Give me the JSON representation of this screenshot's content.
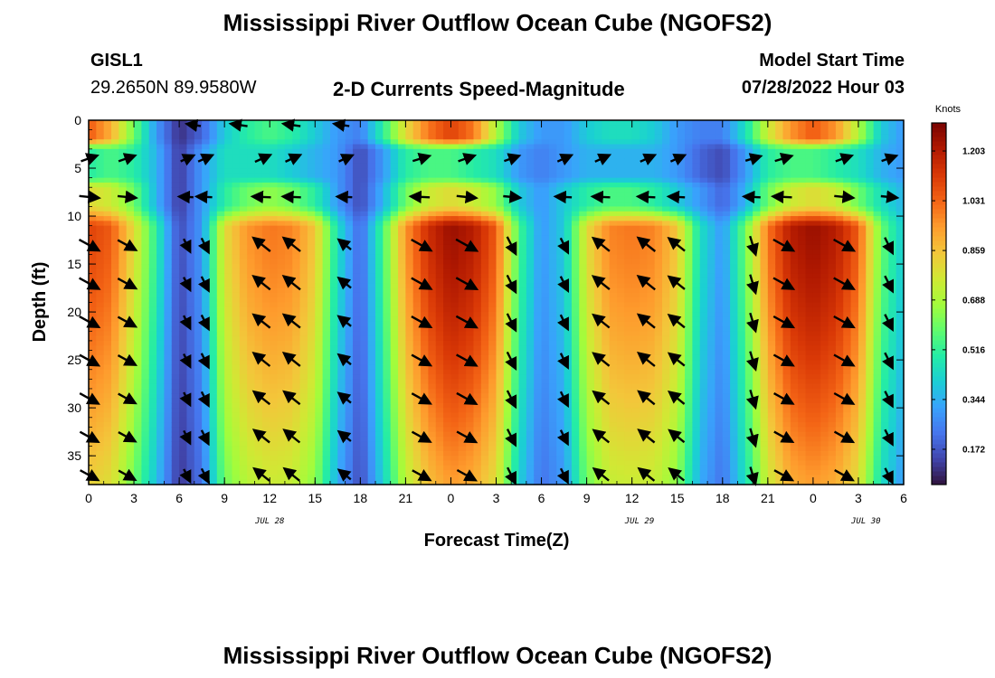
{
  "page": {
    "title": "Mississippi River Outflow Ocean Cube (NGOFS2)",
    "station_id": "GISL1",
    "station_coords": "29.2650N  89.9580W",
    "plot_subtitle": "2-D Currents Speed-Magnitude",
    "model_label": "Model Start Time",
    "model_time": "07/28/2022 Hour 03",
    "footer_title": "Mississippi River Outflow Ocean Cube (NGOFS2)"
  },
  "chart_data": {
    "type": "heatmap",
    "xlabel": "Forecast Time(Z)",
    "ylabel": "Depth (ft)",
    "xlim": [
      0,
      54
    ],
    "ylim": [
      0,
      38
    ],
    "y_inverted": true,
    "x_ticks": [
      0,
      3,
      6,
      9,
      12,
      15,
      18,
      21,
      24,
      27,
      30,
      33,
      36,
      39,
      42,
      45,
      48,
      51,
      54
    ],
    "x_tick_labels": [
      "0",
      "3",
      "6",
      "9",
      "12",
      "15",
      "18",
      "21",
      "0",
      "3",
      "6",
      "9",
      "12",
      "15",
      "18",
      "21",
      "0",
      "3",
      "6"
    ],
    "y_ticks": [
      0,
      5,
      10,
      15,
      20,
      25,
      30,
      35
    ],
    "y_tick_labels": [
      "0",
      "5",
      "10",
      "15",
      "20",
      "25",
      "30",
      "35"
    ],
    "date_labels": [
      {
        "x": 12,
        "text": "JUL 28"
      },
      {
        "x": 36.5,
        "text": "JUL 29"
      },
      {
        "x": 51.5,
        "text": "JUL 30"
      }
    ],
    "colorbar": {
      "label": "Knots",
      "min": 0.05,
      "max": 1.3,
      "ticks": [
        1.203,
        1.031,
        0.859,
        0.688,
        0.516,
        0.344,
        0.172
      ],
      "tick_labels": [
        "1.203",
        "1.031",
        "0.859",
        "0.688",
        "0.516",
        "0.344",
        "0.172"
      ],
      "colormap": [
        "#30123b",
        "#4145ab",
        "#4675ed",
        "#39a2fc",
        "#1bcfd4",
        "#24eca6",
        "#61fc6c",
        "#a4fc3b",
        "#d1e834",
        "#f3c63a",
        "#fe9b2d",
        "#f36315",
        "#d93806",
        "#b11901",
        "#7a0402"
      ]
    },
    "depth_layers": [
      {
        "top": 0,
        "bottom": 3
      },
      {
        "top": 3,
        "bottom": 7
      },
      {
        "top": 7,
        "bottom": 10
      },
      {
        "top": 10,
        "bottom": 38
      }
    ],
    "speed_profile": {
      "note_keys": [
        "hours",
        "surface",
        "mid",
        "interface",
        "deep"
      ],
      "hours": [
        0,
        1.5,
        3,
        4.5,
        6,
        7.5,
        9,
        10.5,
        12,
        13.5,
        15,
        16.5,
        18,
        19.5,
        21,
        22.5,
        24,
        25.5,
        27,
        28.5,
        30,
        31.5,
        33,
        34.5,
        36,
        37.5,
        39,
        40.5,
        42,
        43.5,
        45,
        46.5,
        48,
        49.5,
        51,
        52.5,
        54
      ],
      "surface": [
        1.05,
        0.9,
        0.6,
        0.3,
        0.1,
        0.2,
        0.4,
        0.5,
        0.55,
        0.5,
        0.4,
        0.3,
        0.25,
        0.5,
        0.8,
        1.0,
        1.1,
        1.0,
        0.7,
        0.4,
        0.3,
        0.3,
        0.4,
        0.45,
        0.45,
        0.4,
        0.3,
        0.25,
        0.25,
        0.45,
        0.75,
        0.95,
        1.05,
        0.95,
        0.7,
        0.4,
        0.3
      ],
      "mid": [
        0.5,
        0.55,
        0.5,
        0.35,
        0.12,
        0.3,
        0.45,
        0.45,
        0.45,
        0.4,
        0.35,
        0.3,
        0.15,
        0.3,
        0.5,
        0.55,
        0.55,
        0.5,
        0.45,
        0.3,
        0.25,
        0.3,
        0.35,
        0.35,
        0.35,
        0.35,
        0.3,
        0.2,
        0.15,
        0.3,
        0.5,
        0.55,
        0.55,
        0.5,
        0.45,
        0.35,
        0.3
      ],
      "interface": [
        0.8,
        0.75,
        0.6,
        0.35,
        0.12,
        0.3,
        0.5,
        0.6,
        0.65,
        0.6,
        0.5,
        0.3,
        0.15,
        0.35,
        0.6,
        0.75,
        0.8,
        0.75,
        0.65,
        0.4,
        0.3,
        0.4,
        0.5,
        0.55,
        0.55,
        0.5,
        0.4,
        0.3,
        0.2,
        0.35,
        0.6,
        0.75,
        0.8,
        0.75,
        0.6,
        0.45,
        0.35
      ],
      "deep": [
        1.1,
        1.05,
        0.8,
        0.5,
        0.15,
        0.3,
        0.8,
        0.95,
        1.0,
        0.98,
        0.85,
        0.45,
        0.2,
        0.55,
        0.95,
        1.15,
        1.25,
        1.2,
        1.05,
        0.55,
        0.3,
        0.4,
        0.8,
        0.98,
        1.0,
        0.98,
        0.85,
        0.45,
        0.3,
        0.6,
        1.0,
        1.2,
        1.25,
        1.2,
        1.05,
        0.6,
        0.4
      ]
    },
    "vectors": {
      "x_hours": [
        0,
        2.5,
        6.5,
        7.7,
        11.5,
        13.5,
        17,
        22,
        25,
        28,
        31.5,
        34,
        37,
        39,
        44,
        46,
        50,
        53
      ],
      "depths": [
        4,
        8,
        13,
        17,
        21,
        25,
        29,
        33,
        37
      ],
      "surface_rows": [
        {
          "depth": 0.5,
          "x": [
            7,
            10,
            13.5,
            16.8
          ],
          "dir": "west"
        }
      ]
    }
  }
}
